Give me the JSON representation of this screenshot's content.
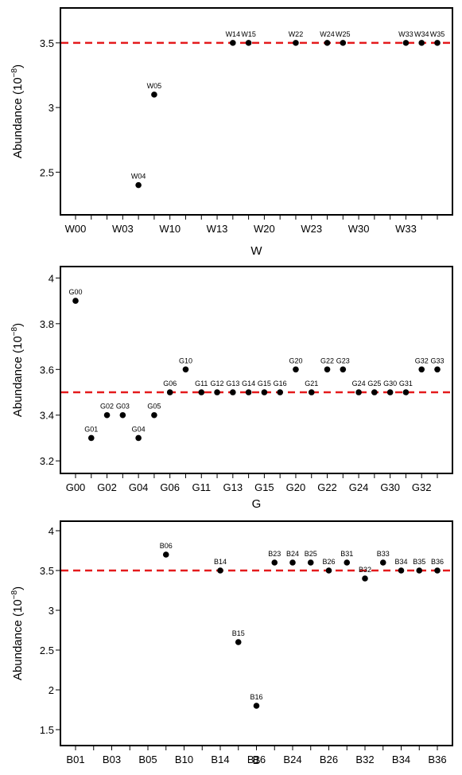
{
  "chart_data": [
    {
      "type": "scatter",
      "xlabel": "W",
      "ylabel_base": "Abundance (10",
      "ylabel_exp": "−8",
      "ylabel_close": ")",
      "ylim": [
        2.17,
        3.77
      ],
      "yticks": [
        2.5,
        3,
        3.5
      ],
      "ytick_labels": [
        "2.5",
        "3",
        "3.5"
      ],
      "reference_line": 3.5,
      "reference_color": "#e41a1c",
      "x_positions": 24,
      "xticks": [
        0,
        3,
        6,
        9,
        12,
        15,
        18,
        21
      ],
      "xtick_labels": [
        "W00",
        "W03",
        "W10",
        "W13",
        "W20",
        "W23",
        "W30",
        "W33"
      ],
      "points": [
        {
          "label": "W04",
          "x": 4,
          "y": 2.4
        },
        {
          "label": "W05",
          "x": 5,
          "y": 3.1
        },
        {
          "label": "W14",
          "x": 10,
          "y": 3.5
        },
        {
          "label": "W15",
          "x": 11,
          "y": 3.5
        },
        {
          "label": "W22",
          "x": 14,
          "y": 3.5
        },
        {
          "label": "W24",
          "x": 16,
          "y": 3.5
        },
        {
          "label": "W25",
          "x": 17,
          "y": 3.5
        },
        {
          "label": "W33",
          "x": 21,
          "y": 3.5
        },
        {
          "label": "W34",
          "x": 22,
          "y": 3.5
        },
        {
          "label": "W35",
          "x": 23,
          "y": 3.5
        }
      ]
    },
    {
      "type": "scatter",
      "xlabel": "G",
      "ylabel_base": "Abundance (10",
      "ylabel_exp": "−8",
      "ylabel_close": ")",
      "ylim": [
        3.145,
        4.05
      ],
      "yticks": [
        3.2,
        3.4,
        3.6,
        3.8,
        4
      ],
      "ytick_labels": [
        "3.2",
        "3.4",
        "3.6",
        "3.8",
        "4"
      ],
      "reference_line": 3.5,
      "reference_color": "#e41a1c",
      "x_positions": 24,
      "xticks": [
        0,
        2,
        4,
        6,
        8,
        10,
        12,
        14,
        16,
        18,
        20,
        22
      ],
      "xtick_labels": [
        "G00",
        "G02",
        "G04",
        "G06",
        "G11",
        "G13",
        "G15",
        "G20",
        "G22",
        "G24",
        "G30",
        "G32"
      ],
      "points": [
        {
          "label": "G00",
          "x": 0,
          "y": 3.9
        },
        {
          "label": "G01",
          "x": 1,
          "y": 3.3
        },
        {
          "label": "G02",
          "x": 2,
          "y": 3.4
        },
        {
          "label": "G03",
          "x": 3,
          "y": 3.4
        },
        {
          "label": "G04",
          "x": 4,
          "y": 3.3
        },
        {
          "label": "G05",
          "x": 5,
          "y": 3.4
        },
        {
          "label": "G06",
          "x": 6,
          "y": 3.5
        },
        {
          "label": "G10",
          "x": 7,
          "y": 3.6
        },
        {
          "label": "G11",
          "x": 8,
          "y": 3.5
        },
        {
          "label": "G12",
          "x": 9,
          "y": 3.5
        },
        {
          "label": "G13",
          "x": 10,
          "y": 3.5
        },
        {
          "label": "G14",
          "x": 11,
          "y": 3.5
        },
        {
          "label": "G15",
          "x": 12,
          "y": 3.5
        },
        {
          "label": "G16",
          "x": 13,
          "y": 3.5
        },
        {
          "label": "G20",
          "x": 14,
          "y": 3.6
        },
        {
          "label": "G21",
          "x": 15,
          "y": 3.5
        },
        {
          "label": "G22",
          "x": 16,
          "y": 3.6
        },
        {
          "label": "G23",
          "x": 17,
          "y": 3.6
        },
        {
          "label": "G24",
          "x": 18,
          "y": 3.5
        },
        {
          "label": "G25",
          "x": 19,
          "y": 3.5
        },
        {
          "label": "G30",
          "x": 20,
          "y": 3.5
        },
        {
          "label": "G31",
          "x": 21,
          "y": 3.5
        },
        {
          "label": "G32",
          "x": 22,
          "y": 3.6
        },
        {
          "label": "G33",
          "x": 23,
          "y": 3.6
        }
      ]
    },
    {
      "type": "scatter",
      "xlabel": "B",
      "ylabel_base": "Abundance (10",
      "ylabel_exp": "−8",
      "ylabel_close": ")",
      "ylim": [
        1.3,
        4.12
      ],
      "yticks": [
        1.5,
        2,
        2.5,
        3,
        3.5,
        4
      ],
      "ytick_labels": [
        "1.5",
        "2",
        "2.5",
        "3",
        "3.5",
        "4"
      ],
      "reference_line": 3.5,
      "reference_color": "#e41a1c",
      "x_positions": 21,
      "xticks": [
        0,
        2,
        4,
        6,
        8,
        10,
        12,
        14,
        16,
        18,
        20
      ],
      "xtick_labels": [
        "B01",
        "B03",
        "B05",
        "B10",
        "B14",
        "B16",
        "B24",
        "B26",
        "B32",
        "B34",
        "B36"
      ],
      "points": [
        {
          "label": "B06",
          "x": 5,
          "y": 3.7
        },
        {
          "label": "B14",
          "x": 8,
          "y": 3.5
        },
        {
          "label": "B15",
          "x": 9,
          "y": 2.6
        },
        {
          "label": "B16",
          "x": 10,
          "y": 1.8
        },
        {
          "label": "B23",
          "x": 11,
          "y": 3.6
        },
        {
          "label": "B24",
          "x": 12,
          "y": 3.6
        },
        {
          "label": "B25",
          "x": 13,
          "y": 3.6
        },
        {
          "label": "B26",
          "x": 14,
          "y": 3.5
        },
        {
          "label": "B31",
          "x": 15,
          "y": 3.6
        },
        {
          "label": "B32",
          "x": 16,
          "y": 3.4
        },
        {
          "label": "B33",
          "x": 17,
          "y": 3.6
        },
        {
          "label": "B34",
          "x": 18,
          "y": 3.5
        },
        {
          "label": "B35",
          "x": 19,
          "y": 3.5
        },
        {
          "label": "B36",
          "x": 20,
          "y": 3.5
        }
      ]
    }
  ]
}
